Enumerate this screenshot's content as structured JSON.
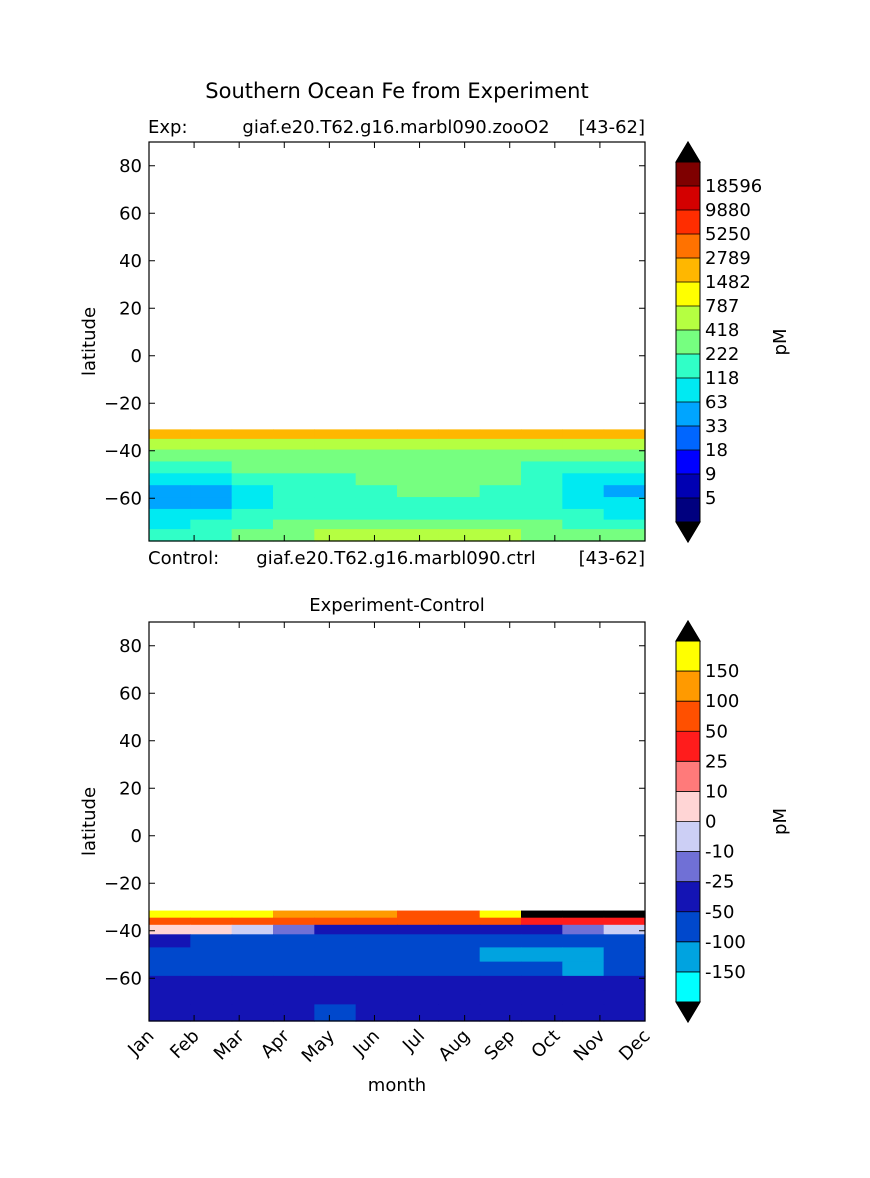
{
  "figure": {
    "title": "Southern Ocean Fe from Experiment",
    "exp_label": "Exp:",
    "exp_case": "giaf.e20.T62.g16.marbl090.zooO2",
    "exp_years": "[43-62]",
    "ctrl_label": "Control:",
    "ctrl_case": "giaf.e20.T62.g16.marbl090.ctrl",
    "ctrl_years": "[43-62]",
    "diff_title": "Experiment-Control"
  },
  "colors": {
    "exp_levels": [
      "#00007f",
      "#0000b2",
      "#0000ff",
      "#0066ff",
      "#00a5ff",
      "#00eaf2",
      "#30ffc7",
      "#76ff80",
      "#b5ff41",
      "#ffff00",
      "#ffb700",
      "#ff7200",
      "#ff2d00",
      "#d40000",
      "#7f0000"
    ],
    "diff_levels": [
      "#00ffff",
      "#00a3e0",
      "#0048cc",
      "#1414b4",
      "#7070d6",
      "#cccff5",
      "#ffd5d5",
      "#ff7a7a",
      "#ff1c1c",
      "#ff5000",
      "#ff9a00",
      "#ffff00"
    ],
    "under": "#000000",
    "over": "#000000"
  },
  "chart_data": [
    {
      "type": "heatmap",
      "panel": "experiment",
      "title": "",
      "xlabel": "",
      "ylabel": "latitude",
      "x": [
        "Jan",
        "Feb",
        "Mar",
        "Apr",
        "May",
        "Jun",
        "Jul",
        "Aug",
        "Sep",
        "Oct",
        "Nov",
        "Dec"
      ],
      "ylim": [
        -78,
        90
      ],
      "yticks": [
        80,
        60,
        40,
        20,
        0,
        -20,
        -40,
        -60
      ],
      "y_lat_centers": [
        -33,
        -37,
        -42,
        -47,
        -52,
        -57,
        -62,
        -67,
        -71,
        -75
      ],
      "level_index_grid": [
        [
          10,
          10,
          10,
          10,
          10,
          10,
          10,
          10,
          10,
          10,
          10,
          10
        ],
        [
          8,
          8,
          8,
          8,
          8,
          8,
          8,
          8,
          8,
          8,
          8,
          8
        ],
        [
          7,
          7,
          7,
          7,
          7,
          7,
          7,
          7,
          7,
          7,
          7,
          7
        ],
        [
          6,
          6,
          7,
          7,
          7,
          7,
          7,
          7,
          7,
          6,
          6,
          6
        ],
        [
          5,
          5,
          6,
          6,
          6,
          7,
          7,
          7,
          7,
          6,
          5,
          5
        ],
        [
          4,
          4,
          5,
          6,
          6,
          6,
          7,
          7,
          6,
          6,
          5,
          4
        ],
        [
          4,
          4,
          5,
          6,
          6,
          6,
          6,
          6,
          6,
          6,
          5,
          5
        ],
        [
          5,
          5,
          6,
          6,
          6,
          6,
          6,
          6,
          6,
          6,
          6,
          5
        ],
        [
          5,
          6,
          6,
          7,
          7,
          7,
          7,
          7,
          7,
          7,
          6,
          6
        ],
        [
          6,
          6,
          7,
          7,
          8,
          8,
          8,
          8,
          8,
          7,
          7,
          7
        ]
      ],
      "colorbar": {
        "label": "pM",
        "ticks": [
          "18596",
          "9880",
          "5250",
          "2789",
          "1482",
          "787",
          "418",
          "222",
          "118",
          "63",
          "33",
          "18",
          "9",
          "5"
        ],
        "extend": "both"
      }
    },
    {
      "type": "heatmap",
      "panel": "difference",
      "title": "Experiment-Control",
      "xlabel": "month",
      "ylabel": "latitude",
      "x": [
        "Jan",
        "Feb",
        "Mar",
        "Apr",
        "May",
        "Jun",
        "Jul",
        "Aug",
        "Sep",
        "Oct",
        "Nov",
        "Dec"
      ],
      "ylim": [
        -78,
        90
      ],
      "yticks": [
        80,
        60,
        40,
        20,
        0,
        -20,
        -40,
        -60
      ],
      "y_lat_centers": [
        -33,
        -36,
        -39,
        -44,
        -50,
        -56,
        -62,
        -68,
        -74
      ],
      "level_index_grid": [
        [
          11,
          11,
          11,
          10,
          10,
          10,
          9,
          9,
          11,
          -1,
          -1,
          -1
        ],
        [
          9,
          9,
          9,
          9,
          9,
          9,
          9,
          9,
          9,
          8,
          8,
          8
        ],
        [
          6,
          6,
          5,
          4,
          3,
          3,
          3,
          3,
          3,
          3,
          4,
          5
        ],
        [
          3,
          2,
          2,
          2,
          2,
          2,
          2,
          2,
          2,
          2,
          2,
          2
        ],
        [
          2,
          2,
          2,
          2,
          2,
          2,
          2,
          2,
          1,
          1,
          1,
          2
        ],
        [
          2,
          2,
          2,
          2,
          2,
          2,
          2,
          2,
          2,
          2,
          1,
          2
        ],
        [
          3,
          3,
          3,
          3,
          3,
          3,
          3,
          3,
          3,
          3,
          3,
          3
        ],
        [
          3,
          3,
          3,
          3,
          3,
          3,
          3,
          3,
          3,
          3,
          3,
          3
        ],
        [
          3,
          3,
          3,
          3,
          2,
          3,
          3,
          3,
          3,
          3,
          3,
          3
        ]
      ],
      "colorbar": {
        "label": "pM",
        "ticks": [
          "150",
          "100",
          "50",
          "25",
          "10",
          "0",
          "-10",
          "-25",
          "-50",
          "-100",
          "-150"
        ],
        "extend": "both"
      }
    }
  ]
}
